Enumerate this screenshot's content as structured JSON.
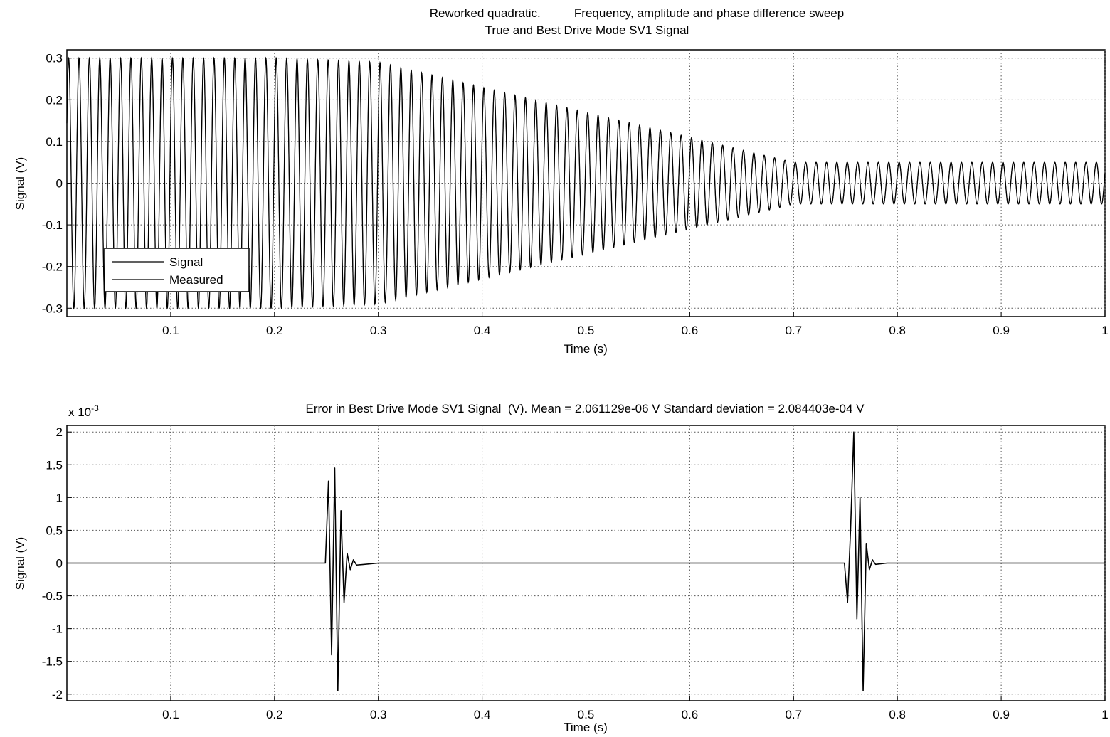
{
  "figure": {
    "title_line1": "Reworked quadratic.          Frequency, amplitude and phase difference sweep",
    "title_line2": "True and Best Drive Mode SV1 Signal"
  },
  "chart_data": [
    {
      "type": "line",
      "title": "Reworked quadratic.          Frequency, amplitude and phase difference sweep\nTrue and Best Drive Mode SV1 Signal",
      "xlabel": "Time (s)",
      "ylabel": "Signal (V)",
      "xlim": [
        0,
        1
      ],
      "ylim": [
        -0.32,
        0.32
      ],
      "xticks": [
        0.1,
        0.2,
        0.3,
        0.4,
        0.5,
        0.6,
        0.7,
        0.8,
        0.9,
        1
      ],
      "xtick_labels": [
        "0.1",
        "0.2",
        "0.3",
        "0.4",
        "0.5",
        "0.6",
        "0.7",
        "0.8",
        "0.9",
        "1"
      ],
      "yticks": [
        0.3,
        0.2,
        0.1,
        0,
        -0.1,
        -0.2,
        -0.3
      ],
      "ytick_labels": [
        "0.3",
        "0.2",
        "0.1",
        "0",
        "-0.1",
        "-0.2",
        "-0.3"
      ],
      "grid": true,
      "legend": {
        "placement": "bottom-left",
        "entries": [
          "Signal",
          "Measured"
        ]
      },
      "series": [
        {
          "name": "Signal",
          "kind": "amplitude-swept sinusoid",
          "cycles_visible": 100,
          "envelope": {
            "t": [
              0,
              0.2,
              0.3,
              0.5,
              0.7,
              1.0
            ],
            "amplitude": [
              0.3,
              0.3,
              0.29,
              0.17,
              0.05,
              0.05
            ]
          }
        },
        {
          "name": "Measured",
          "kind": "amplitude-swept sinusoid",
          "cycles_visible": 100,
          "envelope": {
            "t": [
              0,
              0.2,
              0.3,
              0.5,
              0.7,
              1.0
            ],
            "amplitude": [
              0.3,
              0.3,
              0.29,
              0.17,
              0.05,
              0.05
            ]
          }
        }
      ],
      "color": "#000000"
    },
    {
      "type": "line",
      "title": "Error in Best Drive Mode SV1 Signal  (V). Mean = 2.061129e-06 V Standard deviation = 2.084403e-04 V",
      "xlabel": "Time (s)",
      "ylabel": "Signal (V)",
      "y_multiplier_label": "x 10",
      "y_multiplier_exponent": "-3",
      "xlim": [
        0,
        1
      ],
      "ylim": [
        -2.1,
        2.1
      ],
      "xticks": [
        0.1,
        0.2,
        0.3,
        0.4,
        0.5,
        0.6,
        0.7,
        0.8,
        0.9,
        1
      ],
      "xtick_labels": [
        "0.1",
        "0.2",
        "0.3",
        "0.4",
        "0.5",
        "0.6",
        "0.7",
        "0.8",
        "0.9",
        "1"
      ],
      "yticks": [
        2,
        1.5,
        1,
        0.5,
        0,
        -0.5,
        -1,
        -1.5,
        -2
      ],
      "ytick_labels": [
        "2",
        "1.5",
        "1",
        "0.5",
        "0",
        "-0.5",
        "-1",
        "-1.5",
        "-2"
      ],
      "grid": true,
      "series": [
        {
          "x": [
            0,
            0.249,
            0.252,
            0.255,
            0.258,
            0.261,
            0.264,
            0.267,
            0.27,
            0.273,
            0.276,
            0.279,
            0.3,
            0.5,
            0.7,
            0.749,
            0.752,
            0.755,
            0.758,
            0.761,
            0.764,
            0.767,
            0.77,
            0.773,
            0.776,
            0.779,
            0.79,
            1
          ],
          "y": [
            0,
            0,
            1.25,
            -1.4,
            1.45,
            -1.95,
            0.8,
            -0.6,
            0.15,
            -0.1,
            0.05,
            -0.03,
            0,
            0,
            0,
            0,
            -0.6,
            0.55,
            2.0,
            -0.85,
            1.0,
            -1.95,
            0.3,
            -0.1,
            0.05,
            -0.02,
            0,
            0
          ]
        }
      ],
      "color": "#000000"
    }
  ]
}
